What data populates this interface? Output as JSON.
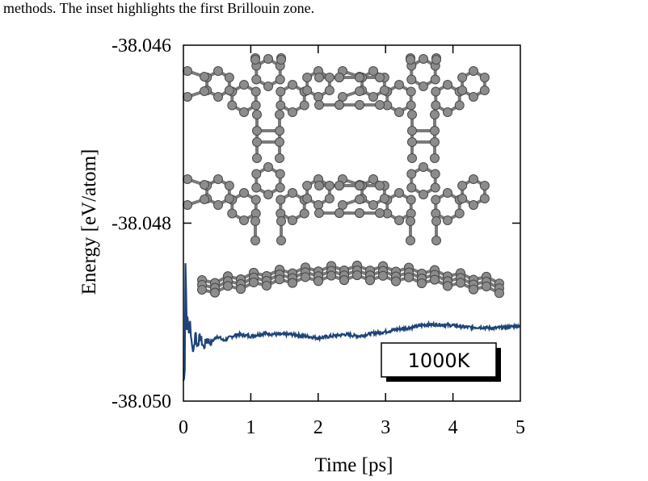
{
  "caption": "methods. The inset highlights the first Brillouin zone.",
  "colors": {
    "series": "#1f4479",
    "frame": "#000000",
    "atom": "#8c8c8c",
    "bond": "#7a7a7a",
    "atom_stroke": "#4a4a4a"
  },
  "chart_data": {
    "type": "line",
    "xlabel": "Time [ps]",
    "ylabel": "Energy [eV/atom]",
    "xlim": [
      0,
      5
    ],
    "ylim": [
      -38.05,
      -38.046
    ],
    "xticks": [
      "0",
      "1",
      "2",
      "3",
      "4",
      "5"
    ],
    "yticks": [
      "-38.046",
      "-38.048",
      "-38.050"
    ],
    "annotation": "1000K",
    "grid": false,
    "series": [
      {
        "x": [
          0,
          0.01,
          0.02,
          0.03,
          0.04,
          0.05,
          0.06,
          0.08,
          0.1,
          0.12,
          0.15,
          0.18,
          0.2,
          0.25,
          0.3,
          0.35,
          0.4,
          0.5,
          0.6,
          0.7,
          0.8,
          0.9,
          1.0,
          1.2,
          1.4,
          1.6,
          1.8,
          2.0,
          2.2,
          2.4,
          2.6,
          2.8,
          3.0,
          3.2,
          3.4,
          3.6,
          3.8,
          4.0,
          4.2,
          4.4,
          4.6,
          4.8,
          5.0
        ],
        "y": [
          -38.04977,
          -38.04975,
          -38.04965,
          -38.04845,
          -38.04875,
          -38.0492,
          -38.04905,
          -38.0492,
          -38.0491,
          -38.04935,
          -38.04945,
          -38.0492,
          -38.04938,
          -38.04927,
          -38.0494,
          -38.0493,
          -38.04935,
          -38.04927,
          -38.04932,
          -38.04928,
          -38.04925,
          -38.04926,
          -38.04927,
          -38.04924,
          -38.04925,
          -38.04925,
          -38.04927,
          -38.04929,
          -38.04927,
          -38.04925,
          -38.04927,
          -38.04924,
          -38.04922,
          -38.04919,
          -38.04917,
          -38.04914,
          -38.04914,
          -38.04915,
          -38.04917,
          -38.04917,
          -38.04918,
          -38.04917,
          -38.04915
        ]
      }
    ]
  }
}
